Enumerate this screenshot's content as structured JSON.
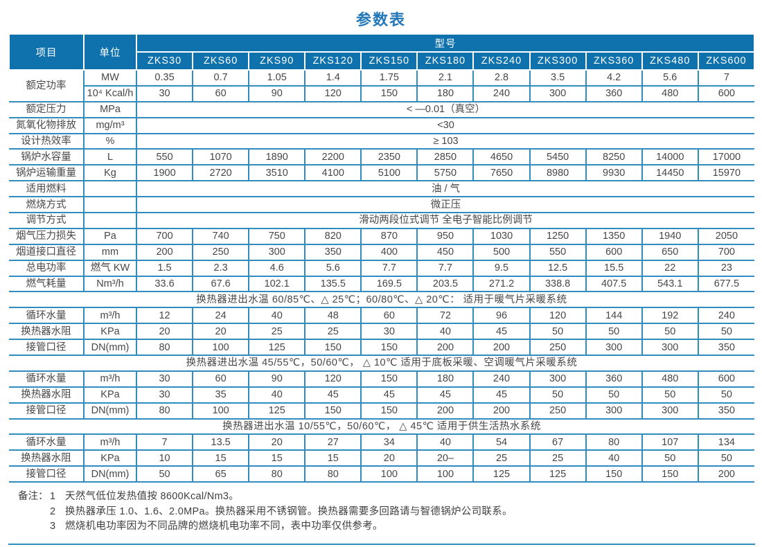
{
  "page": {
    "title": "参数表"
  },
  "colors": {
    "header_bg": "#0f72ad",
    "border_blue": "#2f8cbf",
    "title_blue": "#2277b8",
    "text": "#404040"
  },
  "table": {
    "header": {
      "item": "项目",
      "unit": "单位",
      "model_group": "型号",
      "models": [
        "ZKS30",
        "ZKS60",
        "ZKS90",
        "ZKS120",
        "ZKS150",
        "ZKS180",
        "ZKS240",
        "ZKS300",
        "ZKS360",
        "ZKS480",
        "ZKS600"
      ]
    },
    "rows": [
      {
        "type": "data",
        "label": "额定功率",
        "label_rowspan": 2,
        "unit": "MW",
        "values": [
          "0.35",
          "0.7",
          "1.05",
          "1.4",
          "1.75",
          "2.1",
          "2.8",
          "3.5",
          "4.2",
          "5.6",
          "7"
        ]
      },
      {
        "type": "data",
        "unit": "10⁴ Kcal/h",
        "values": [
          "30",
          "60",
          "90",
          "120",
          "150",
          "180",
          "240",
          "300",
          "360",
          "480",
          "600"
        ]
      },
      {
        "type": "span",
        "label": "额定压力",
        "unit": "MPa",
        "value": "< —0.01（真空）"
      },
      {
        "type": "span",
        "label": "氮氧化物排放",
        "unit": "mg/m³",
        "value": "<30"
      },
      {
        "type": "span",
        "label": "设计热效率",
        "unit": "%",
        "value": "≥ 103"
      },
      {
        "type": "data",
        "label": "锅炉水容量",
        "unit": "L",
        "values": [
          "550",
          "1070",
          "1890",
          "2200",
          "2350",
          "2850",
          "4650",
          "5450",
          "8250",
          "14000",
          "17000"
        ]
      },
      {
        "type": "data",
        "label": "锅炉运输重量",
        "unit": "Kg",
        "values": [
          "1900",
          "2720",
          "3510",
          "4100",
          "5100",
          "5750",
          "7650",
          "8980",
          "9930",
          "14450",
          "15970"
        ]
      },
      {
        "type": "span",
        "label": "适用燃料",
        "unit": "",
        "value": "油 / 气"
      },
      {
        "type": "span",
        "label": "燃烧方式",
        "unit": "",
        "value": "微正压"
      },
      {
        "type": "span",
        "label": "调节方式",
        "unit": "",
        "value": "滑动两段位式调节  全电子智能比例调节"
      },
      {
        "type": "data",
        "label": "烟气压力损失",
        "unit": "Pa",
        "values": [
          "700",
          "740",
          "750",
          "820",
          "870",
          "950",
          "1030",
          "1250",
          "1350",
          "1940",
          "2050"
        ]
      },
      {
        "type": "data",
        "label": "烟道接口直径",
        "unit": "mm",
        "values": [
          "200",
          "250",
          "300",
          "350",
          "400",
          "450",
          "500",
          "550",
          "600",
          "650",
          "700"
        ]
      },
      {
        "type": "data",
        "label": "总电功率",
        "unit": "燃气 KW",
        "values": [
          "1.5",
          "2.3",
          "4.6",
          "5.6",
          "7.7",
          "7.7",
          "9.5",
          "12.5",
          "15.5",
          "22",
          "23"
        ]
      },
      {
        "type": "data",
        "label": "燃气耗量",
        "unit": "Nm³/h",
        "values": [
          "33.6",
          "67.6",
          "102.1",
          "135.5",
          "169.5",
          "203.5",
          "271.2",
          "338.8",
          "407.5",
          "543.1",
          "677.5"
        ]
      },
      {
        "type": "section",
        "text": "换热器进出水温 60/85℃、△ 25℃；60/80℃、△ 20℃：  适用于暖气片采暖系统"
      },
      {
        "type": "data",
        "label": "循环水量",
        "unit": "m³/h",
        "values": [
          "12",
          "24",
          "40",
          "48",
          "60",
          "72",
          "96",
          "120",
          "144",
          "192",
          "240"
        ]
      },
      {
        "type": "data",
        "label": "换热器水阻",
        "unit": "KPa",
        "values": [
          "20",
          "20",
          "25",
          "25",
          "30",
          "40",
          "45",
          "50",
          "50",
          "50",
          "50"
        ]
      },
      {
        "type": "data",
        "label": "接管口径",
        "unit": "DN(mm)",
        "values": [
          "80",
          "100",
          "125",
          "150",
          "150",
          "200",
          "200",
          "250",
          "300",
          "300",
          "350"
        ]
      },
      {
        "type": "section",
        "text": "换热器进出水温 45/55℃，50/60℃， △ 10℃  适用于底板采暖、空调暖气片采暖系统"
      },
      {
        "type": "data",
        "label": "循环水量",
        "unit": "m³/h",
        "values": [
          "30",
          "60",
          "90",
          "120",
          "150",
          "180",
          "240",
          "300",
          "360",
          "480",
          "600"
        ]
      },
      {
        "type": "data",
        "label": "换热器水阻",
        "unit": "KPa",
        "values": [
          "30",
          "35",
          "40",
          "45",
          "45",
          "45",
          "45",
          "50",
          "50",
          "50",
          "50"
        ]
      },
      {
        "type": "data",
        "label": "接管口径",
        "unit": "DN(mm)",
        "values": [
          "80",
          "100",
          "125",
          "150",
          "150",
          "200",
          "200",
          "250",
          "300",
          "300",
          "350"
        ]
      },
      {
        "type": "section",
        "text": "换热器进出水温 10/55℃，50/60℃， △ 45℃  适用于供生活热水系统"
      },
      {
        "type": "data",
        "label": "循环水量",
        "unit": "m³/h",
        "values": [
          "7",
          "13.5",
          "20",
          "27",
          "34",
          "40",
          "54",
          "67",
          "80",
          "107",
          "134"
        ]
      },
      {
        "type": "data",
        "label": "换热器水阻",
        "unit": "KPa",
        "values": [
          "10",
          "15",
          "15",
          "15",
          "20",
          "20–",
          "25",
          "25",
          "40",
          "50",
          "50"
        ]
      },
      {
        "type": "data",
        "label": "接管口径",
        "unit": "DN(mm)",
        "values": [
          "50",
          "65",
          "80",
          "80",
          "100",
          "100",
          "125",
          "125",
          "150",
          "150",
          "200"
        ]
      }
    ]
  },
  "notes": {
    "label": "备注：",
    "items": [
      {
        "num": "1",
        "text": "天然气低位发热值按 8600Kcal/Nm3。"
      },
      {
        "num": "2",
        "text": "换热器承压 1.0、1.6、2.0MPa。换热器采用不锈钢管。换热器需要多回路请与智德锅炉公司联系。"
      },
      {
        "num": "3",
        "text": "燃烧机电功率因为不同品牌的燃烧机电功率不同，表中功率仅供参考。"
      }
    ]
  }
}
